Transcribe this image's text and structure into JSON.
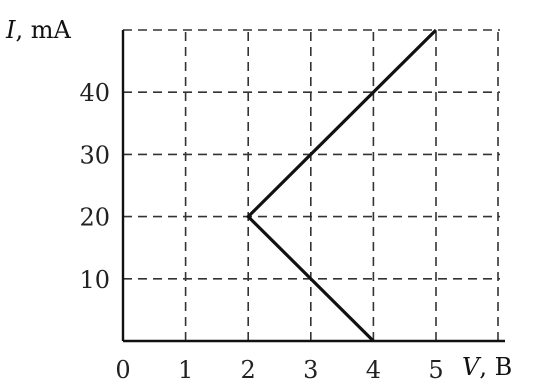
{
  "chart_data": {
    "type": "line",
    "xlabel_var": "V",
    "xlabel_unit": ", B",
    "ylabel_var": "I",
    "ylabel_unit": ", mA",
    "xlim": [
      0,
      5
    ],
    "ylim": [
      0,
      50
    ],
    "grid": true,
    "x_ticks": [
      "0",
      "1",
      "2",
      "3",
      "4",
      "5"
    ],
    "y_ticks": [
      "10",
      "20",
      "30",
      "40"
    ],
    "series": [
      {
        "x": [
          4,
          2,
          5
        ],
        "y": [
          0,
          20,
          50
        ]
      }
    ]
  }
}
